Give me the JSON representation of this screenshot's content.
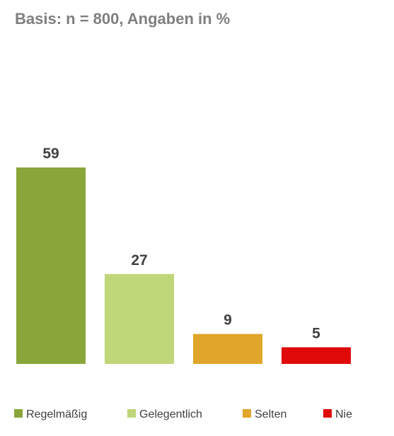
{
  "subtitle": "Basis: n = 800, Angaben in %",
  "chart_data": {
    "type": "bar",
    "title": "",
    "subtitle": "Basis: n = 800, Angaben in %",
    "xlabel": "",
    "ylabel": "",
    "ylim": [
      0,
      59
    ],
    "grid": false,
    "legend_position": "bottom",
    "categories": [
      "Regelmäßig",
      "Gelegentlich",
      "Selten",
      "Nie"
    ],
    "values": [
      59,
      27,
      9,
      5
    ],
    "colors": [
      "#8aa63a",
      "#bfd679",
      "#e0a52a",
      "#e00a0a"
    ],
    "value_color": "#404040",
    "subtitle_color": "#7f7f7f"
  }
}
